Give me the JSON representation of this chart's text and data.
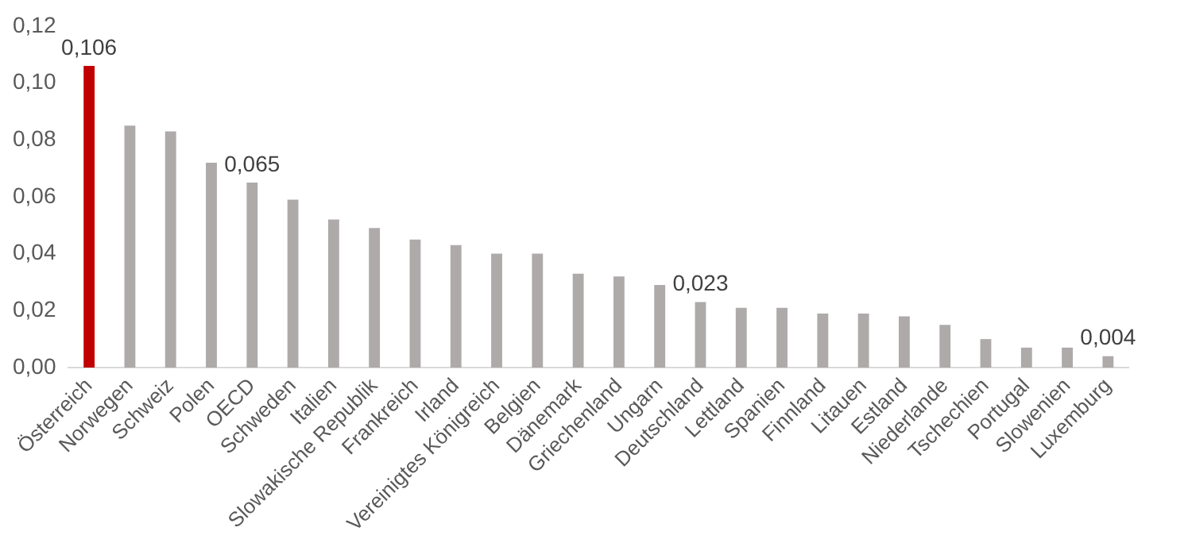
{
  "chart_data": {
    "type": "bar",
    "categories": [
      "Österreich",
      "Norwegen",
      "Schweiz",
      "Polen",
      "OECD",
      "Schweden",
      "Italien",
      "Slowakische Republik",
      "Frankreich",
      "Irland",
      "Vereinigtes Königreich",
      "Belgien",
      "Dänemark",
      "Griechenland",
      "Ungarn",
      "Deutschland",
      "Lettland",
      "Spanien",
      "Finnland",
      "Litauen",
      "Estland",
      "Niederlande",
      "Tschechien",
      "Portugal",
      "Slowenien",
      "Luxemburg"
    ],
    "values": [
      0.106,
      0.085,
      0.083,
      0.072,
      0.065,
      0.059,
      0.052,
      0.049,
      0.045,
      0.043,
      0.04,
      0.04,
      0.033,
      0.032,
      0.029,
      0.023,
      0.021,
      0.021,
      0.019,
      0.019,
      0.018,
      0.015,
      0.01,
      0.007,
      0.007,
      0.004
    ],
    "colors": [
      "#c00000",
      "#aeaaaa",
      "#aeaaaa",
      "#aeaaaa",
      "#aeaaaa",
      "#aeaaaa",
      "#aeaaaa",
      "#aeaaaa",
      "#aeaaaa",
      "#aeaaaa",
      "#aeaaaa",
      "#aeaaaa",
      "#aeaaaa",
      "#aeaaaa",
      "#aeaaaa",
      "#aeaaaa",
      "#aeaaaa",
      "#aeaaaa",
      "#aeaaaa",
      "#aeaaaa",
      "#aeaaaa",
      "#aeaaaa",
      "#aeaaaa",
      "#aeaaaa",
      "#aeaaaa",
      "#aeaaaa"
    ],
    "value_labels": [
      "0,106",
      null,
      null,
      null,
      "0,065",
      null,
      null,
      null,
      null,
      null,
      null,
      null,
      null,
      null,
      null,
      "0,023",
      null,
      null,
      null,
      null,
      null,
      null,
      null,
      null,
      null,
      "0,004"
    ],
    "ylim": [
      0,
      0.12
    ],
    "yticks": [
      {
        "value": 0,
        "label": "0,00"
      },
      {
        "value": 0.02,
        "label": "0,02"
      },
      {
        "value": 0.04,
        "label": "0,04"
      },
      {
        "value": 0.06,
        "label": "0,06"
      },
      {
        "value": 0.08,
        "label": "0,08"
      },
      {
        "value": 0.1,
        "label": "0,10"
      },
      {
        "value": 0.12,
        "label": "0,12"
      }
    ],
    "grid": false,
    "legend": false
  }
}
